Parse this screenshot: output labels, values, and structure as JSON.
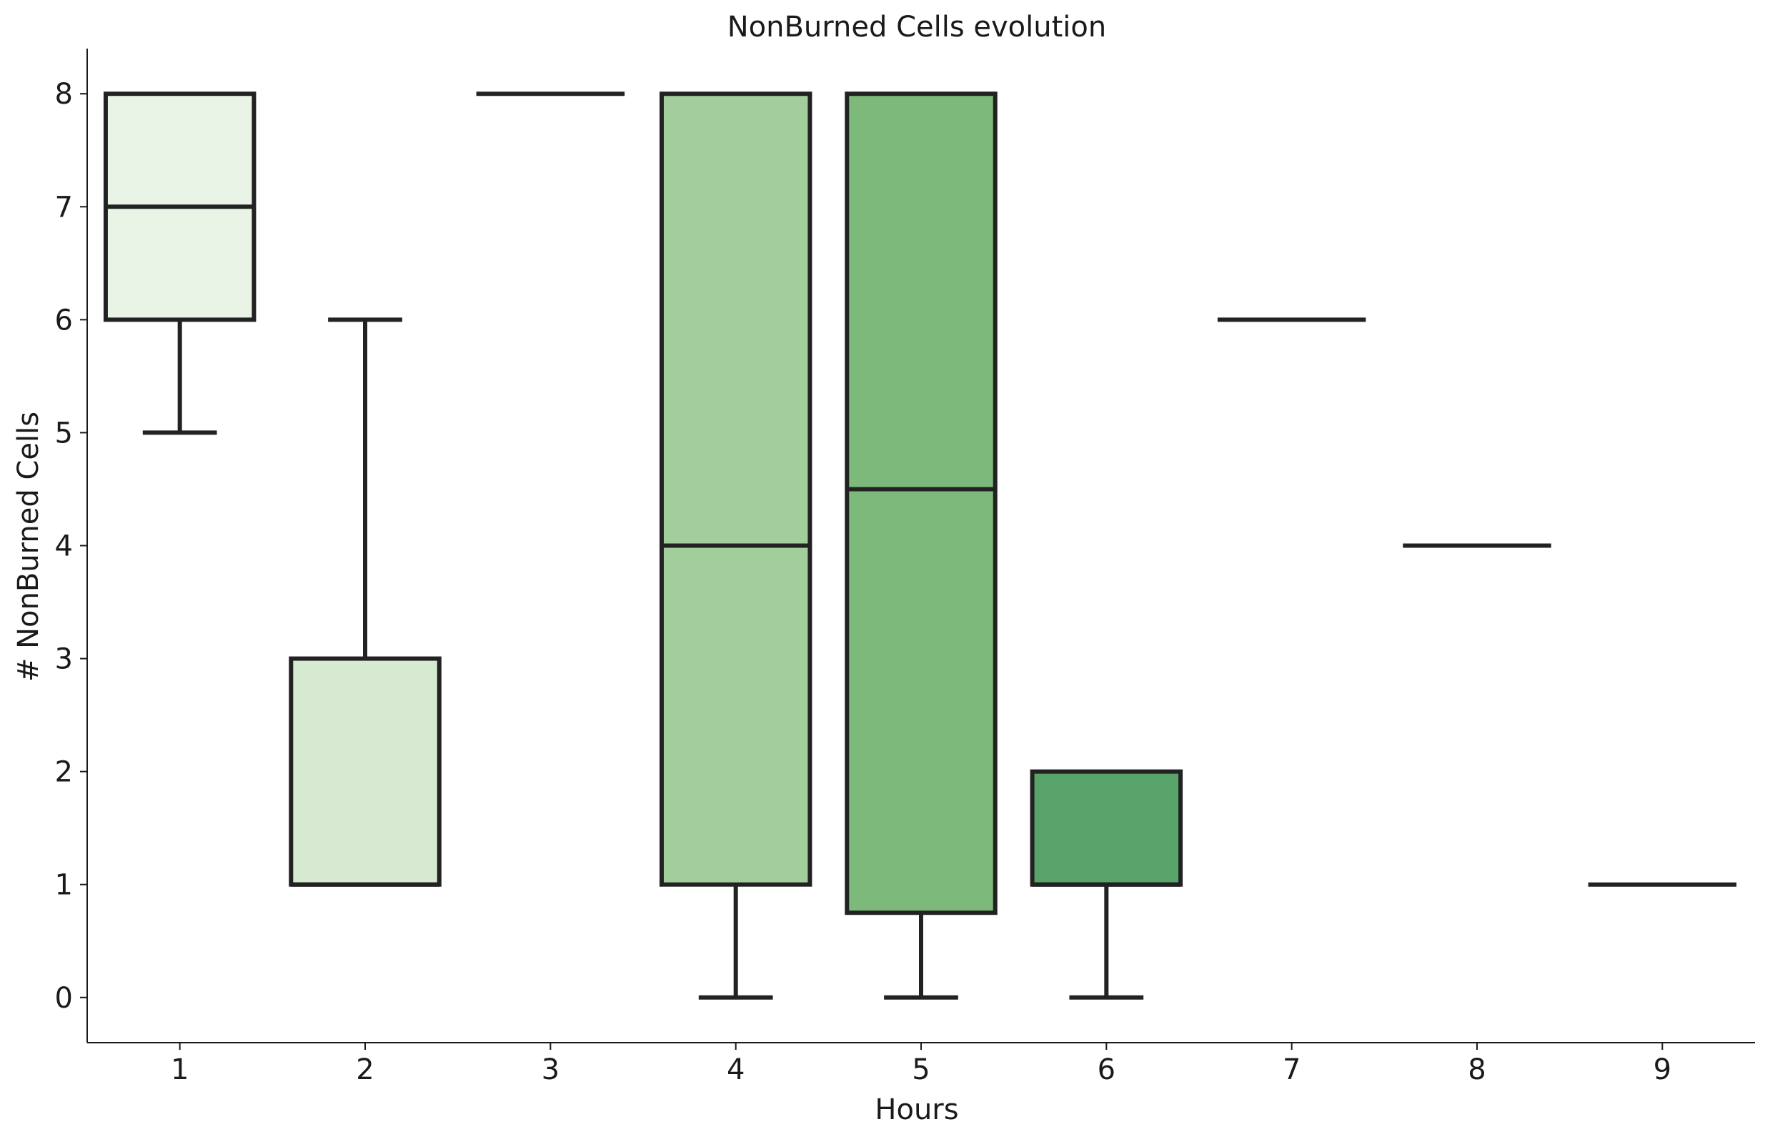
{
  "chart_data": {
    "type": "box",
    "title": "NonBurned Cells evolution",
    "xlabel": "Hours",
    "ylabel": "# NonBurned Cells",
    "categories": [
      "1",
      "2",
      "3",
      "4",
      "5",
      "6",
      "7",
      "8",
      "9"
    ],
    "ylim": [
      -0.4,
      8.4
    ],
    "yticks": [
      0,
      1,
      2,
      3,
      4,
      5,
      6,
      7,
      8
    ],
    "grid": false,
    "boxes": [
      {
        "category": "1",
        "whisker_low": 5,
        "q1": 6,
        "median": 7,
        "q3": 8,
        "whisker_high": 8,
        "color": "#e9f4e6"
      },
      {
        "category": "2",
        "whisker_low": 1,
        "q1": 1,
        "median": 1,
        "q3": 3,
        "whisker_high": 6,
        "color": "#d6ead1"
      },
      {
        "category": "3",
        "whisker_low": 8,
        "q1": 8,
        "median": 8,
        "q3": 8,
        "whisker_high": 8,
        "color": "#bcdfb4"
      },
      {
        "category": "4",
        "whisker_low": 0,
        "q1": 1,
        "median": 4,
        "q3": 8,
        "whisker_high": 8,
        "color": "#a1ce9a"
      },
      {
        "category": "5",
        "whisker_low": 0,
        "q1": 0.75,
        "median": 4.5,
        "q3": 8,
        "whisker_high": 8,
        "color": "#7db97b"
      },
      {
        "category": "6",
        "whisker_low": 0,
        "q1": 1,
        "median": 1,
        "q3": 2,
        "whisker_high": 2,
        "color": "#58a46a"
      },
      {
        "category": "7",
        "whisker_low": 6,
        "q1": 6,
        "median": 6,
        "q3": 6,
        "whisker_high": 6,
        "color": "#3c8d55"
      },
      {
        "category": "8",
        "whisker_low": 4,
        "q1": 4,
        "median": 4,
        "q3": 4,
        "whisker_high": 4,
        "color": "#2c7843"
      },
      {
        "category": "9",
        "whisker_low": 1,
        "q1": 1,
        "median": 1,
        "q3": 1,
        "whisker_high": 1,
        "color": "#1c6431"
      }
    ],
    "colors": {
      "edge": "#222222",
      "axis": "#1a1a1a"
    }
  }
}
